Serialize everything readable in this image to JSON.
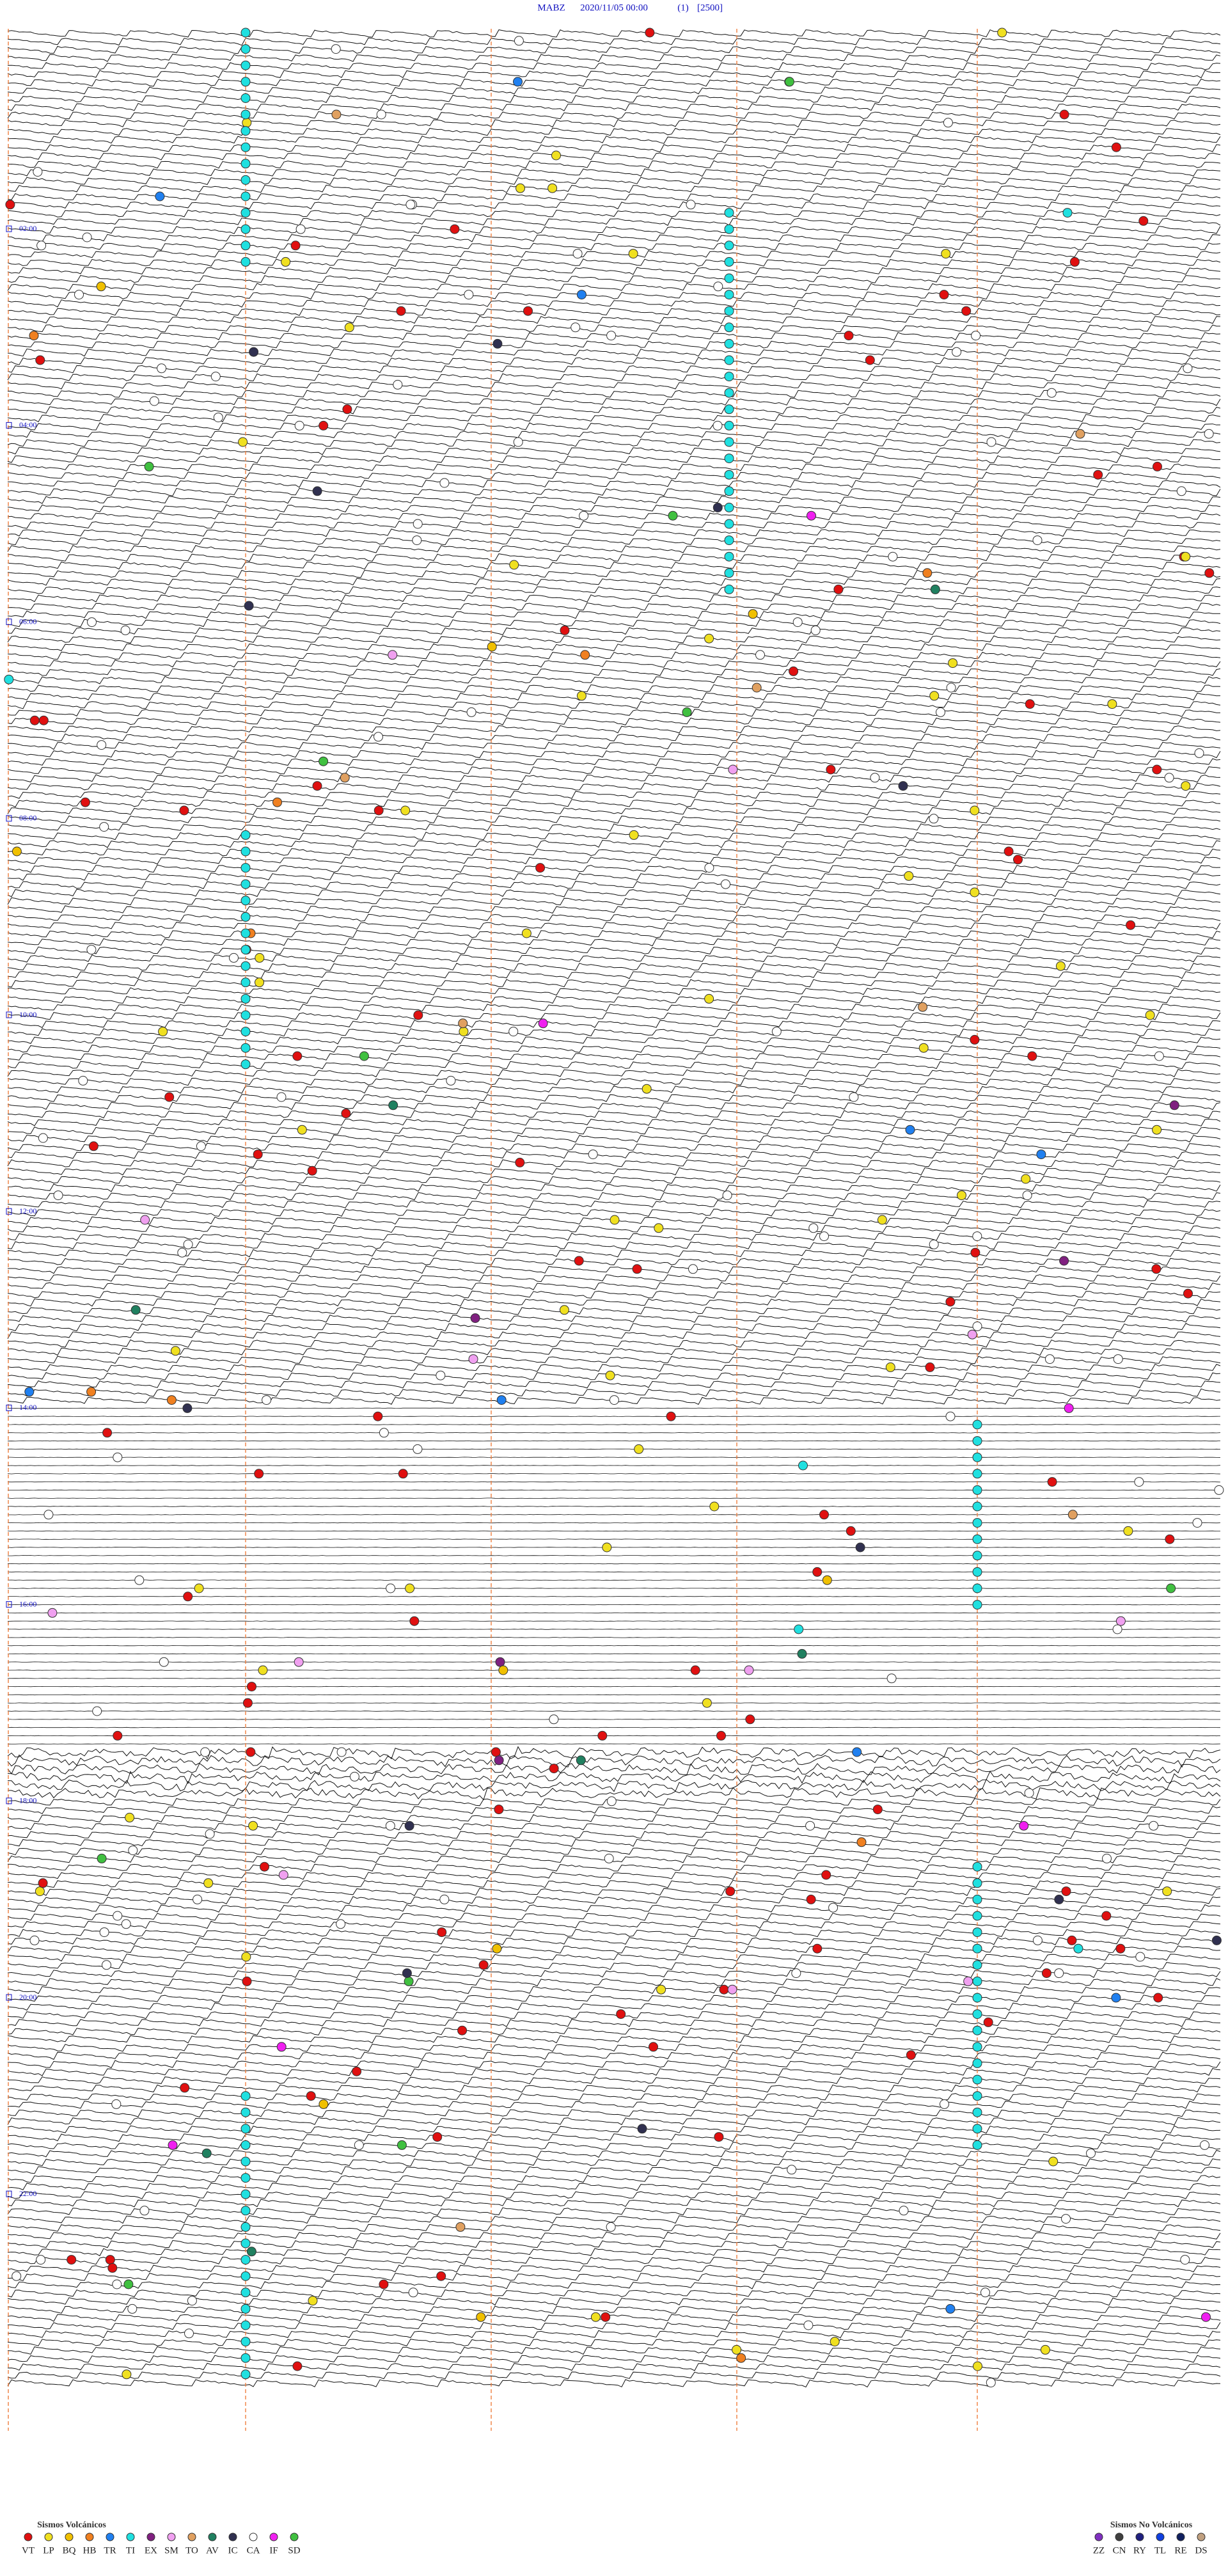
{
  "header": {
    "station": "MABZ",
    "datetime": "2020/11/05 00:00",
    "channel": "(1)",
    "scale": "[2500]"
  },
  "hour_labels": [
    "02:00",
    "04:00",
    "06:00",
    "08:00",
    "10:00",
    "12:00",
    "14:00",
    "16:00",
    "18:00",
    "20:00",
    "22:00"
  ],
  "legend": {
    "volcanic": {
      "title": "Sismos Volcánicos",
      "items": [
        {
          "label": "VT",
          "color": "#e01010"
        },
        {
          "label": "LP",
          "color": "#f0e020"
        },
        {
          "label": "BQ",
          "color": "#f0c000"
        },
        {
          "label": "HB",
          "color": "#f08020"
        },
        {
          "label": "TR",
          "color": "#2080f0"
        },
        {
          "label": "TI",
          "color": "#20e0e0"
        },
        {
          "label": "EX",
          "color": "#802080"
        },
        {
          "label": "SM",
          "color": "#f0a0f0"
        },
        {
          "label": "TO",
          "color": "#e0a060"
        },
        {
          "label": "AV",
          "color": "#208060"
        },
        {
          "label": "IC",
          "color": "#303050"
        },
        {
          "label": "CA",
          "color": "#ffffff"
        },
        {
          "label": "IF",
          "color": "#f020f0"
        },
        {
          "label": "SD",
          "color": "#40c040"
        }
      ]
    },
    "non_volcanic": {
      "title": "Sismos No Volcánicos",
      "items": [
        {
          "label": "ZZ",
          "color": "#8030c0"
        },
        {
          "label": "CN",
          "color": "#404040"
        },
        {
          "label": "RY",
          "color": "#202080"
        },
        {
          "label": "TL",
          "color": "#1040e0"
        },
        {
          "label": "RE",
          "color": "#102060"
        },
        {
          "label": "DS",
          "color": "#c0a080"
        }
      ]
    }
  }
}
